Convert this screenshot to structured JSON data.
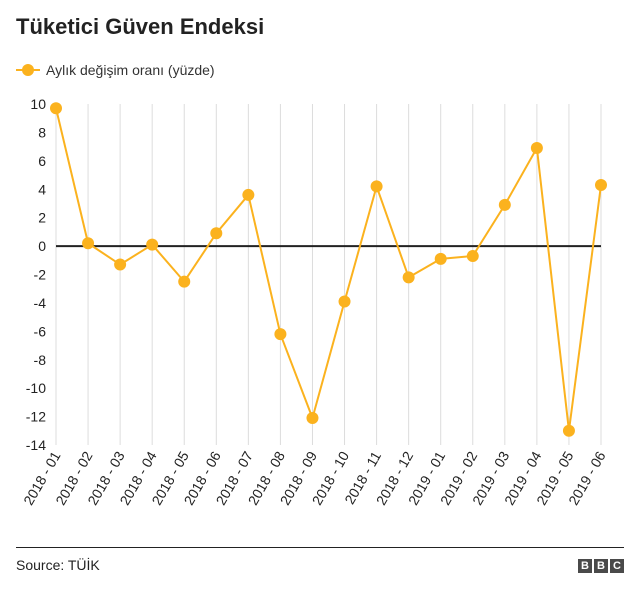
{
  "title": "Tüketici Güven Endeksi",
  "source": "Source: TÜİK",
  "logo": [
    "B",
    "B",
    "C"
  ],
  "colors": {
    "series": "#fbb21e",
    "zero_line": "#222222",
    "grid": "#dcdcdc",
    "text": "#222222"
  },
  "chart_data": {
    "type": "line",
    "title": "Tüketici Güven Endeksi",
    "xlabel": "",
    "ylabel": "",
    "categories": [
      "2018 - 01",
      "2018 - 02",
      "2018 - 03",
      "2018 - 04",
      "2018 - 05",
      "2018 - 06",
      "2018 - 07",
      "2018 - 08",
      "2018 - 09",
      "2018 - 10",
      "2018 - 11",
      "2018 - 12",
      "2019 - 01",
      "2019 - 02",
      "2019 - 03",
      "2019 - 04",
      "2019 - 05",
      "2019 - 06"
    ],
    "series": [
      {
        "name": "Aylık değişim oranı (yüzde)",
        "values": [
          9.7,
          0.2,
          -1.3,
          0.1,
          -2.5,
          0.9,
          3.6,
          -6.2,
          -12.1,
          -3.9,
          4.2,
          -2.2,
          -0.9,
          -0.7,
          2.9,
          6.9,
          -13.0,
          4.3
        ]
      }
    ],
    "ylim": [
      -14,
      10
    ],
    "yticks": [
      10,
      8,
      6,
      4,
      2,
      0,
      -2,
      -4,
      -6,
      -8,
      -10,
      -12,
      -14
    ],
    "grid": "vertical",
    "legend": "top-left"
  }
}
